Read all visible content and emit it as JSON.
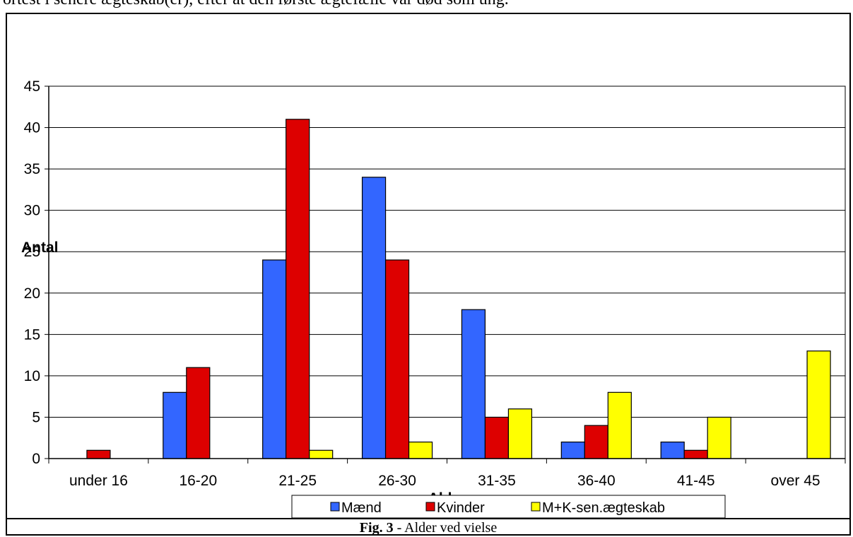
{
  "top_text": "ortest i senere ægteskab(er), efter at den første ægtefælle var død som ung.",
  "caption": {
    "prefix": "Fig. 3",
    "rest": " - Alder ved vielse"
  },
  "colors": {
    "maend": "#3366FF",
    "kvinder": "#DD0000",
    "sen": "#FFFF00"
  },
  "chart_data": {
    "type": "bar",
    "categories": [
      "under 16",
      "16-20",
      "21-25",
      "26-30",
      "31-35",
      "36-40",
      "41-45",
      "over 45"
    ],
    "series": [
      {
        "name": "Mænd",
        "values": [
          0,
          8,
          24,
          34,
          18,
          2,
          2,
          0
        ]
      },
      {
        "name": "Kvinder",
        "values": [
          1,
          11,
          41,
          24,
          5,
          4,
          1,
          0
        ]
      },
      {
        "name": "M+K-sen.ægteskab",
        "values": [
          0,
          0,
          1,
          2,
          6,
          8,
          5,
          13
        ]
      }
    ],
    "title": "",
    "xlabel": "Alder",
    "ylabel": "Antal",
    "ylim": [
      0,
      45
    ],
    "yticks": [
      0,
      5,
      10,
      15,
      20,
      25,
      30,
      35,
      40,
      45
    ],
    "grid": true,
    "legend": "bottom"
  }
}
